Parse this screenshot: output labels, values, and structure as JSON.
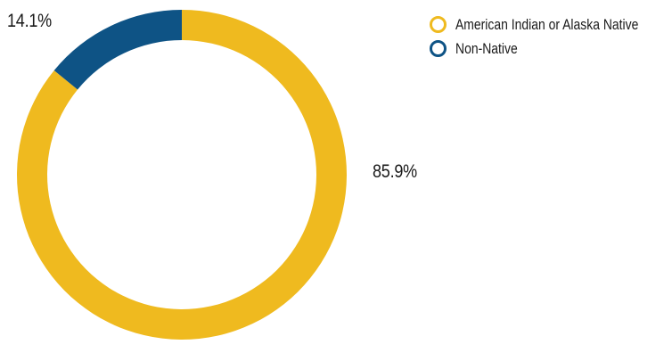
{
  "chart_data": {
    "type": "pie",
    "variant": "donut",
    "categories": [
      "American Indian or Alaska Native",
      "Non-Native"
    ],
    "values": [
      85.9,
      14.1
    ],
    "value_labels": [
      "85.9%",
      "14.1%"
    ],
    "colors": [
      "#efba1f",
      "#0e5385"
    ],
    "legend_position": "top-right"
  }
}
